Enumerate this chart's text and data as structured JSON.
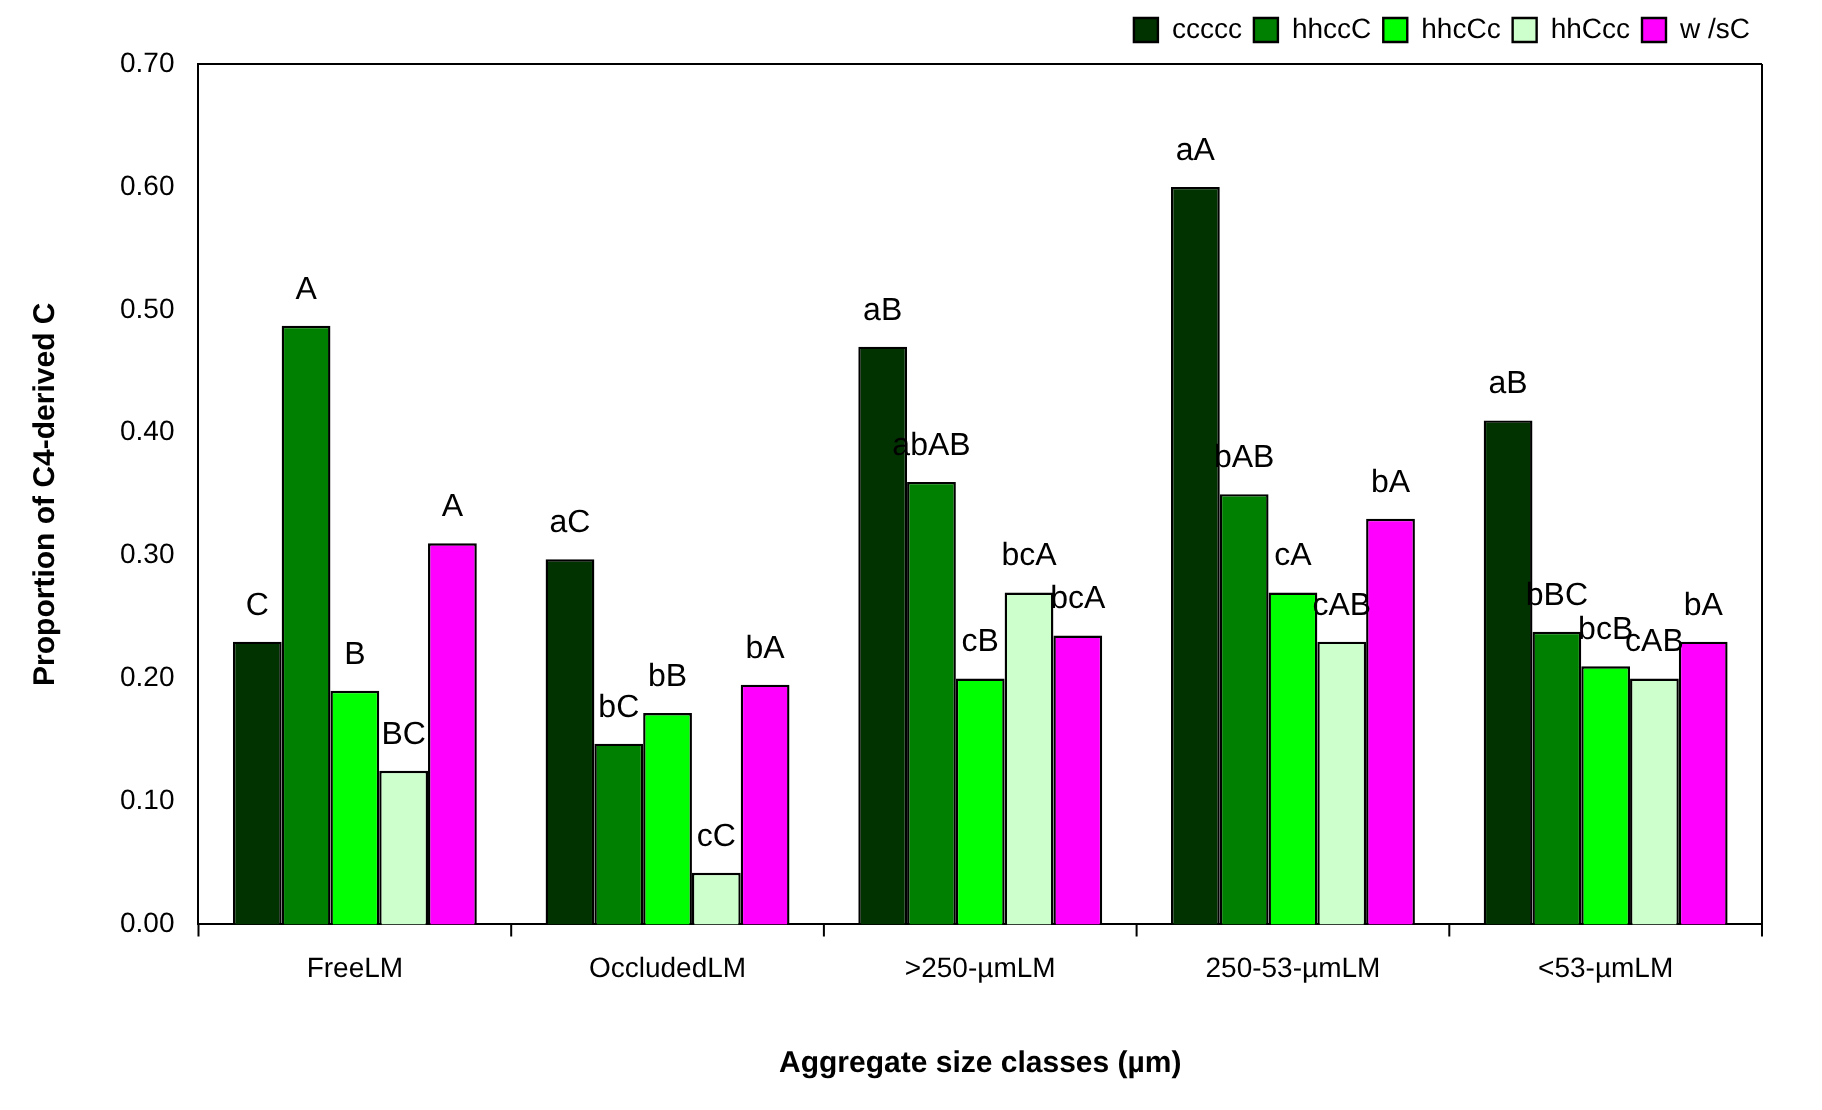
{
  "chart_data": {
    "type": "bar",
    "xlabel": "Aggregate size classes (µm)",
    "ylabel": "Proportion of C4-derived C",
    "categories": [
      "FreeLM",
      "OccludedLM",
      ">250-µmLM",
      "250-53-µmLM",
      "<53-µmLM"
    ],
    "series": [
      {
        "name": "ccccc",
        "color": "#003300",
        "values": [
          0.23,
          0.297,
          0.47,
          0.6,
          0.41
        ],
        "value_labels": [
          "C",
          "aC",
          "aB",
          "aA",
          "aB"
        ]
      },
      {
        "name": "hhccC",
        "color": "#008000",
        "values": [
          0.487,
          0.147,
          0.36,
          0.35,
          0.238
        ],
        "value_labels": [
          "A",
          "bC",
          "abAB",
          "bAB",
          "bBC"
        ]
      },
      {
        "name": "hhcCc",
        "color": "#00ff00",
        "values": [
          0.19,
          0.172,
          0.2,
          0.27,
          0.21
        ],
        "value_labels": [
          "B",
          "bB",
          "cB",
          "cA",
          "bcB"
        ]
      },
      {
        "name": "hhCcc",
        "color": "#ccffcc",
        "values": [
          0.125,
          0.042,
          0.27,
          0.23,
          0.2
        ],
        "value_labels": [
          "BC",
          "cC",
          "bcA",
          "cAB",
          "cAB"
        ]
      },
      {
        "name": "w /sC",
        "color": "#ff00ff",
        "values": [
          0.31,
          0.195,
          0.235,
          0.33,
          0.23
        ],
        "value_labels": [
          "A",
          "bA",
          "bcA",
          "bA",
          "bA"
        ]
      }
    ],
    "ylim": [
      0,
      0.7
    ],
    "yticks": [
      {
        "value": 0,
        "label": "0.00"
      },
      {
        "value": 0.1,
        "label": "0.10"
      },
      {
        "value": 0.2,
        "label": "0.20"
      },
      {
        "value": 0.3,
        "label": "0.30"
      },
      {
        "value": 0.4,
        "label": "0.40"
      },
      {
        "value": 0.5,
        "label": "0.50"
      },
      {
        "value": 0.6,
        "label": "0.60"
      },
      {
        "value": 0.7,
        "label": "0.70"
      }
    ],
    "grid": false,
    "legend": "top right"
  }
}
